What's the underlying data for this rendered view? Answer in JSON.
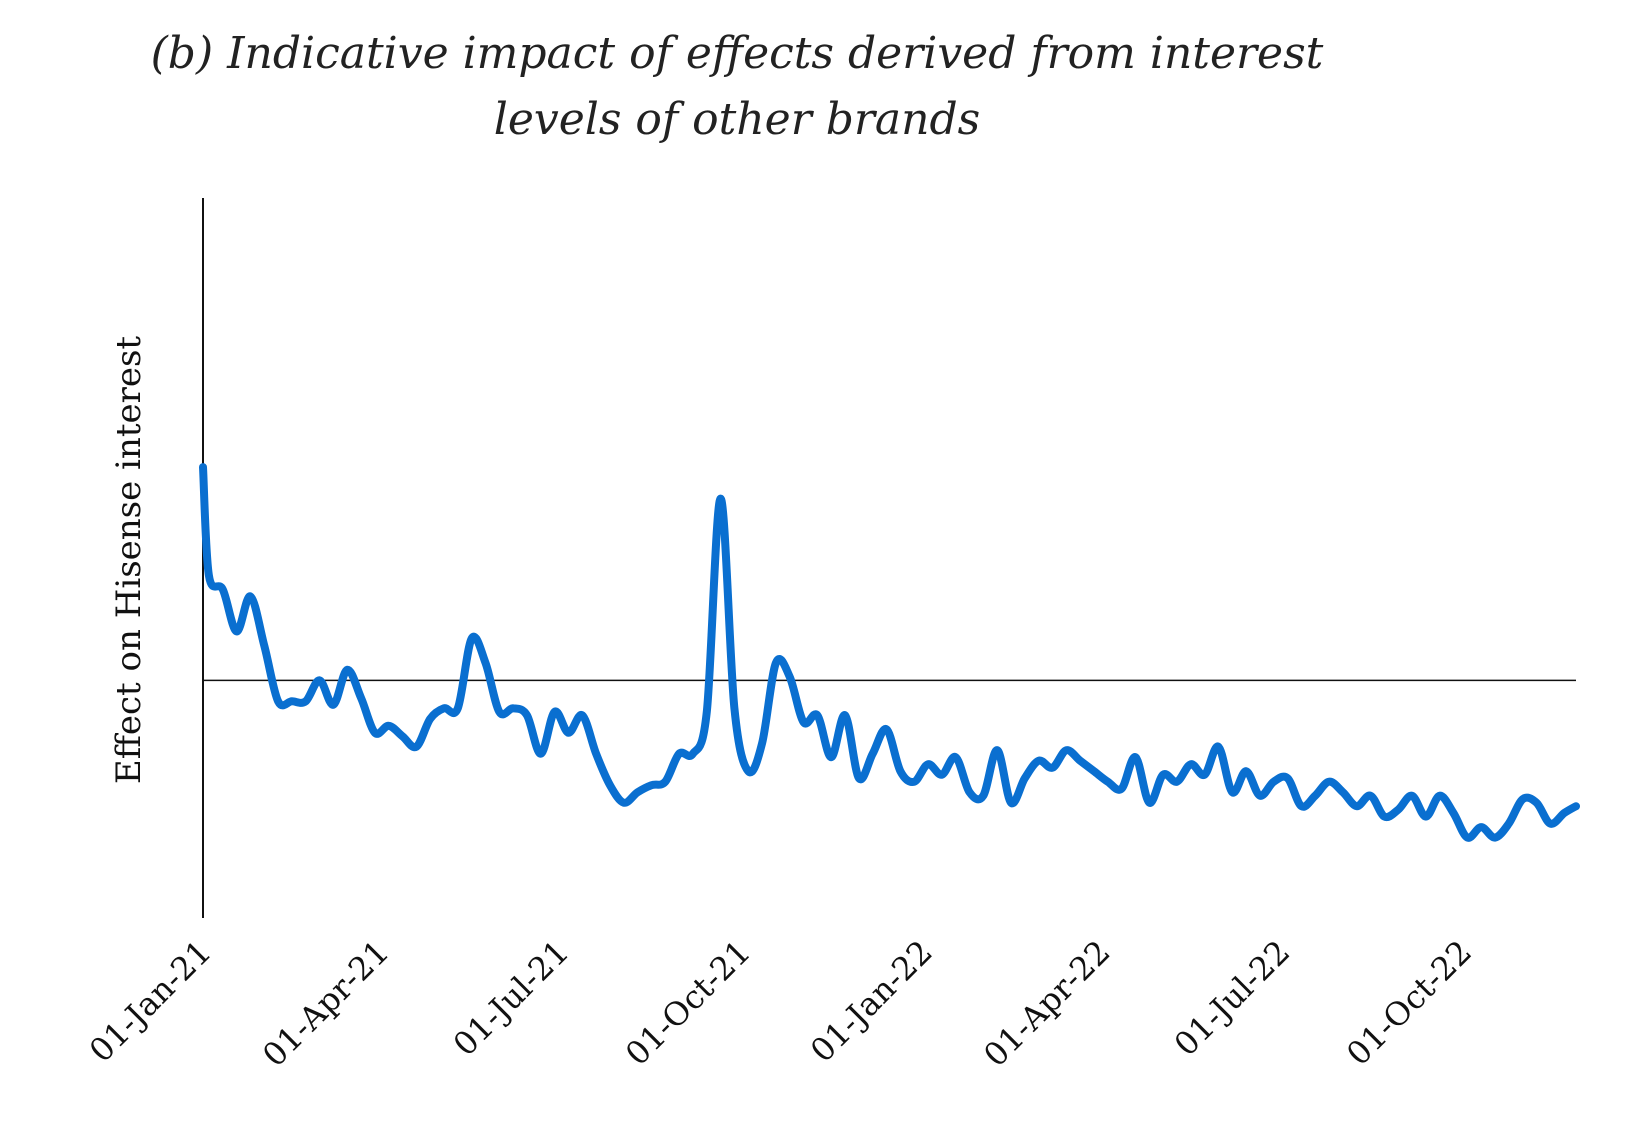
{
  "chart_data": {
    "type": "line",
    "title_line1": "(b) Indicative impact of effects derived from interest",
    "title_line2": "levels of other brands",
    "xlabel": "",
    "ylabel": "Effect on Hisense interest",
    "x_tick_labels": [
      "01-Jan-21",
      "01-Apr-21",
      "01-Jul-21",
      "01-Oct-21",
      "01-Jan-22",
      "01-Apr-22",
      "01-Jul-22",
      "01-Oct-22"
    ],
    "x_ticks": [
      "2021-01-01",
      "2021-04-01",
      "2021-07-01",
      "2021-10-01",
      "2022-01-01",
      "2022-04-01",
      "2022-07-01",
      "2022-10-01"
    ],
    "xlim": [
      "2021-01-01",
      "2022-11-27"
    ],
    "ylim": [
      -6.8,
      13.8
    ],
    "zero_line": true,
    "grid": false,
    "line_color": "#0a6fd0",
    "series": [
      {
        "x": [
          "2021-01-01",
          "2021-01-04",
          "2021-01-11",
          "2021-01-18",
          "2021-01-25",
          "2021-02-01",
          "2021-02-08",
          "2021-02-15",
          "2021-02-22",
          "2021-03-01",
          "2021-03-08",
          "2021-03-15",
          "2021-03-22",
          "2021-03-29",
          "2021-04-05",
          "2021-04-12",
          "2021-04-19",
          "2021-04-26",
          "2021-05-03",
          "2021-05-10",
          "2021-05-17",
          "2021-05-24",
          "2021-05-31",
          "2021-06-07",
          "2021-06-14",
          "2021-06-21",
          "2021-06-28",
          "2021-07-05",
          "2021-07-12",
          "2021-07-19",
          "2021-07-26",
          "2021-08-02",
          "2021-08-09",
          "2021-08-16",
          "2021-08-23",
          "2021-08-30",
          "2021-09-06",
          "2021-09-13",
          "2021-09-20",
          "2021-09-27",
          "2021-10-04",
          "2021-10-11",
          "2021-10-18",
          "2021-10-25",
          "2021-11-01",
          "2021-11-08",
          "2021-11-15",
          "2021-11-22",
          "2021-11-29",
          "2021-12-06",
          "2021-12-13",
          "2021-12-20",
          "2021-12-27",
          "2022-01-03",
          "2022-01-10",
          "2022-01-17",
          "2022-01-24",
          "2022-01-31",
          "2022-02-07",
          "2022-02-14",
          "2022-02-21",
          "2022-02-28",
          "2022-03-07",
          "2022-03-14",
          "2022-03-21",
          "2022-03-28",
          "2022-04-04",
          "2022-04-11",
          "2022-04-18",
          "2022-04-25",
          "2022-05-02",
          "2022-05-09",
          "2022-05-16",
          "2022-05-23",
          "2022-05-30",
          "2022-06-06",
          "2022-06-13",
          "2022-06-20",
          "2022-06-27",
          "2022-07-04",
          "2022-07-11",
          "2022-07-18",
          "2022-07-25",
          "2022-08-01",
          "2022-08-08",
          "2022-08-15",
          "2022-08-22",
          "2022-08-29",
          "2022-09-05",
          "2022-09-12",
          "2022-09-19",
          "2022-09-26",
          "2022-10-03",
          "2022-10-10",
          "2022-10-17",
          "2022-10-24",
          "2022-10-31",
          "2022-11-07",
          "2022-11-14",
          "2022-11-21",
          "2022-11-27"
        ],
        "values": [
          6.1,
          3.0,
          2.6,
          1.4,
          2.4,
          1.0,
          -0.6,
          -0.6,
          -0.6,
          0.0,
          -0.7,
          0.3,
          -0.5,
          -1.5,
          -1.3,
          -1.6,
          -1.9,
          -1.1,
          -0.8,
          -0.8,
          1.2,
          0.5,
          -0.9,
          -0.8,
          -1.0,
          -2.1,
          -0.9,
          -1.5,
          -1.0,
          -2.1,
          -3.0,
          -3.5,
          -3.2,
          -3.0,
          -2.9,
          -2.1,
          -2.1,
          -0.9,
          5.2,
          -0.8,
          -2.6,
          -1.8,
          0.5,
          0.1,
          -1.2,
          -1.0,
          -2.2,
          -1.0,
          -2.8,
          -2.1,
          -1.4,
          -2.6,
          -2.9,
          -2.4,
          -2.7,
          -2.2,
          -3.2,
          -3.3,
          -2.0,
          -3.5,
          -2.8,
          -2.3,
          -2.5,
          -2.0,
          -2.3,
          -2.6,
          -2.9,
          -3.1,
          -2.2,
          -3.5,
          -2.7,
          -2.9,
          -2.4,
          -2.7,
          -1.9,
          -3.2,
          -2.6,
          -3.3,
          -2.9,
          -2.8,
          -3.6,
          -3.3,
          -2.9,
          -3.2,
          -3.6,
          -3.3,
          -3.9,
          -3.7,
          -3.3,
          -3.9,
          -3.3,
          -3.8,
          -4.5,
          -4.2,
          -4.5,
          -4.1,
          -3.4,
          -3.5,
          -4.1,
          -3.8,
          -3.6
        ]
      }
    ]
  }
}
